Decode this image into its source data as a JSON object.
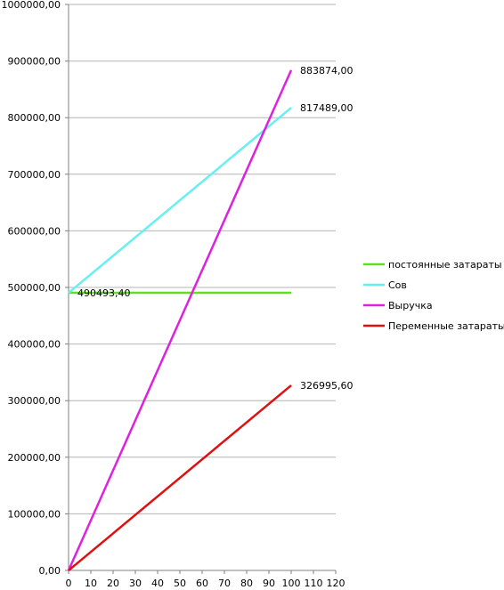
{
  "chart_data": {
    "type": "line",
    "xlim": [
      0,
      120
    ],
    "xticks": [
      0,
      10,
      20,
      30,
      40,
      50,
      60,
      70,
      80,
      90,
      100,
      110,
      120
    ],
    "ylim": [
      0,
      1000000
    ],
    "yticks": [
      0,
      100000,
      200000,
      300000,
      400000,
      500000,
      600000,
      700000,
      800000,
      900000,
      1000000
    ],
    "ytick_labels": [
      "0,00",
      "100000,00",
      "200000,00",
      "300000,00",
      "400000,00",
      "500000,00",
      "600000,00",
      "700000,00",
      "800000,00",
      "900000,00",
      "1000000,00"
    ],
    "grid": "horizontal",
    "legend_position": "right",
    "series": [
      {
        "name": "постоянные затараты",
        "color": "#66dd22",
        "x": [
          0,
          100
        ],
        "y": [
          490493.4,
          490493.4
        ],
        "labels": [
          {
            "index": 0,
            "text": "490493,40"
          }
        ]
      },
      {
        "name": "Сов",
        "color": "#66f0f0",
        "x": [
          0,
          100
        ],
        "y": [
          490493.4,
          817489.0
        ],
        "labels": [
          {
            "index": 1,
            "text": "817489,00"
          }
        ]
      },
      {
        "name": "Выручка",
        "color": "#dd22dd",
        "x": [
          0,
          100
        ],
        "y": [
          0,
          883874.0
        ],
        "labels": [
          {
            "index": 1,
            "text": "883874,00"
          }
        ]
      },
      {
        "name": "Переменные затараты",
        "color": "#dd1111",
        "x": [
          0,
          100
        ],
        "y": [
          0,
          326995.6
        ],
        "labels": [
          {
            "index": 1,
            "text": "326995,60"
          }
        ]
      }
    ]
  }
}
